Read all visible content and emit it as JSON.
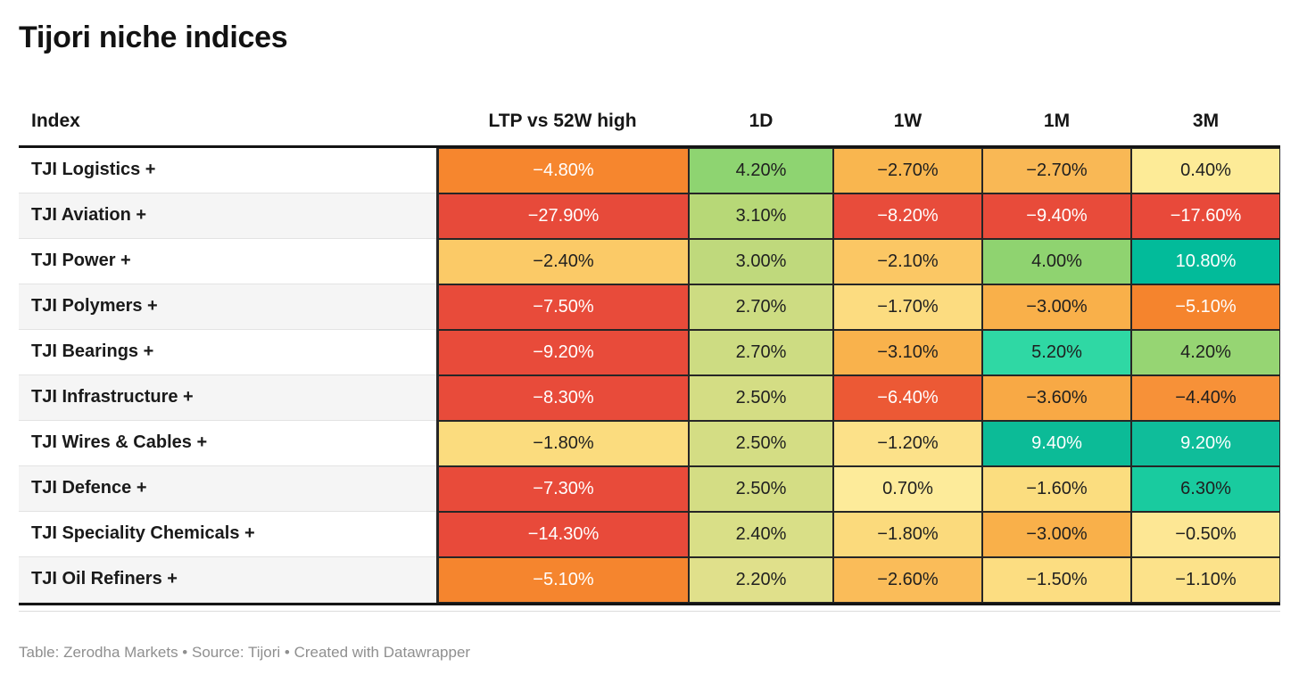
{
  "title": "Tijori niche indices",
  "table": {
    "columns": [
      "Index",
      "LTP vs 52W high",
      "1D",
      "1W",
      "1M",
      "3M"
    ],
    "rows": [
      {
        "name": "TJI Logistics +",
        "cells": [
          {
            "v": "−4.80%",
            "bg": "#f6862e",
            "fg": "#ffffff"
          },
          {
            "v": "4.20%",
            "bg": "#8ed471",
            "fg": "#1f1f1f"
          },
          {
            "v": "−2.70%",
            "bg": "#f9b64f",
            "fg": "#1f1f1f"
          },
          {
            "v": "−2.70%",
            "bg": "#f9b855",
            "fg": "#1f1f1f"
          },
          {
            "v": "0.40%",
            "bg": "#fdeb97",
            "fg": "#1f1f1f"
          }
        ]
      },
      {
        "name": "TJI Aviation +",
        "cells": [
          {
            "v": "−27.90%",
            "bg": "#e74a3a",
            "fg": "#ffffff"
          },
          {
            "v": "3.10%",
            "bg": "#b7d877",
            "fg": "#1f1f1f"
          },
          {
            "v": "−8.20%",
            "bg": "#e84c3b",
            "fg": "#ffffff"
          },
          {
            "v": "−9.40%",
            "bg": "#e84b3a",
            "fg": "#ffffff"
          },
          {
            "v": "−17.60%",
            "bg": "#e8493a",
            "fg": "#ffffff"
          }
        ]
      },
      {
        "name": "TJI Power +",
        "cells": [
          {
            "v": "−2.40%",
            "bg": "#fbca67",
            "fg": "#1f1f1f"
          },
          {
            "v": "3.00%",
            "bg": "#bfd97c",
            "fg": "#1f1f1f"
          },
          {
            "v": "−2.10%",
            "bg": "#fbc764",
            "fg": "#1f1f1f"
          },
          {
            "v": "4.00%",
            "bg": "#8fd370",
            "fg": "#1f1f1f"
          },
          {
            "v": "10.80%",
            "bg": "#02bb9a",
            "fg": "#ffffff"
          }
        ]
      },
      {
        "name": "TJI Polymers +",
        "cells": [
          {
            "v": "−7.50%",
            "bg": "#e84b3a",
            "fg": "#ffffff"
          },
          {
            "v": "2.70%",
            "bg": "#cddc82",
            "fg": "#1f1f1f"
          },
          {
            "v": "−1.70%",
            "bg": "#fcdc80",
            "fg": "#1f1f1f"
          },
          {
            "v": "−3.00%",
            "bg": "#f9b04a",
            "fg": "#1f1f1f"
          },
          {
            "v": "−5.10%",
            "bg": "#f5842d",
            "fg": "#ffffff"
          }
        ]
      },
      {
        "name": "TJI Bearings +",
        "cells": [
          {
            "v": "−9.20%",
            "bg": "#e84b3a",
            "fg": "#ffffff"
          },
          {
            "v": "2.70%",
            "bg": "#cddc82",
            "fg": "#1f1f1f"
          },
          {
            "v": "−3.10%",
            "bg": "#f9b24c",
            "fg": "#1f1f1f"
          },
          {
            "v": "5.20%",
            "bg": "#2fd8a4",
            "fg": "#1f1f1f"
          },
          {
            "v": "4.20%",
            "bg": "#96d573",
            "fg": "#1f1f1f"
          }
        ]
      },
      {
        "name": "TJI Infrastructure +",
        "cells": [
          {
            "v": "−8.30%",
            "bg": "#e84b3a",
            "fg": "#ffffff"
          },
          {
            "v": "2.50%",
            "bg": "#d4dd84",
            "fg": "#1f1f1f"
          },
          {
            "v": "−6.40%",
            "bg": "#ec5935",
            "fg": "#ffffff"
          },
          {
            "v": "−3.60%",
            "bg": "#f8a945",
            "fg": "#1f1f1f"
          },
          {
            "v": "−4.40%",
            "bg": "#f79138",
            "fg": "#1f1f1f"
          }
        ]
      },
      {
        "name": "TJI Wires & Cables +",
        "cells": [
          {
            "v": "−1.80%",
            "bg": "#fbdc7e",
            "fg": "#1f1f1f"
          },
          {
            "v": "2.50%",
            "bg": "#d4dd84",
            "fg": "#1f1f1f"
          },
          {
            "v": "−1.20%",
            "bg": "#fce189",
            "fg": "#1f1f1f"
          },
          {
            "v": "9.40%",
            "bg": "#0cbb97",
            "fg": "#ffffff"
          },
          {
            "v": "9.20%",
            "bg": "#0fbd9a",
            "fg": "#ffffff"
          }
        ]
      },
      {
        "name": "TJI Defence +",
        "cells": [
          {
            "v": "−7.30%",
            "bg": "#e84b3a",
            "fg": "#ffffff"
          },
          {
            "v": "2.50%",
            "bg": "#d4dd84",
            "fg": "#1f1f1f"
          },
          {
            "v": "0.70%",
            "bg": "#fdeb9a",
            "fg": "#1f1f1f"
          },
          {
            "v": "−1.60%",
            "bg": "#fbdd7f",
            "fg": "#1f1f1f"
          },
          {
            "v": "6.30%",
            "bg": "#19cb9f",
            "fg": "#1f1f1f"
          }
        ]
      },
      {
        "name": "TJI Speciality Chemicals +",
        "cells": [
          {
            "v": "−14.30%",
            "bg": "#e84a3a",
            "fg": "#ffffff"
          },
          {
            "v": "2.40%",
            "bg": "#d9df87",
            "fg": "#1f1f1f"
          },
          {
            "v": "−1.80%",
            "bg": "#fbda7c",
            "fg": "#1f1f1f"
          },
          {
            "v": "−3.00%",
            "bg": "#f9b04a",
            "fg": "#1f1f1f"
          },
          {
            "v": "−0.50%",
            "bg": "#fde794",
            "fg": "#1f1f1f"
          }
        ]
      },
      {
        "name": "TJI Oil Refiners +",
        "cells": [
          {
            "v": "−5.10%",
            "bg": "#f5852e",
            "fg": "#ffffff"
          },
          {
            "v": "2.20%",
            "bg": "#e0e08b",
            "fg": "#1f1f1f"
          },
          {
            "v": "−2.60%",
            "bg": "#fabc59",
            "fg": "#1f1f1f"
          },
          {
            "v": "−1.50%",
            "bg": "#fcdd81",
            "fg": "#1f1f1f"
          },
          {
            "v": "−1.10%",
            "bg": "#fce28a",
            "fg": "#1f1f1f"
          }
        ]
      }
    ]
  },
  "footer": "Table: Zerodha Markets • Source: Tijori • Created with Datawrapper",
  "chart_data": {
    "type": "heatmap",
    "title": "Tijori niche indices",
    "columns": [
      "LTP vs 52W high",
      "1D",
      "1W",
      "1M",
      "3M"
    ],
    "rows": [
      "TJI Logistics +",
      "TJI Aviation +",
      "TJI Power +",
      "TJI Polymers +",
      "TJI Bearings +",
      "TJI Infrastructure +",
      "TJI Wires & Cables +",
      "TJI Defence +",
      "TJI Speciality Chemicals +",
      "TJI Oil Refiners +"
    ],
    "values_pct": [
      [
        -4.8,
        4.2,
        -2.7,
        -2.7,
        0.4
      ],
      [
        -27.9,
        3.1,
        -8.2,
        -9.4,
        -17.6
      ],
      [
        -2.4,
        3.0,
        -2.1,
        4.0,
        10.8
      ],
      [
        -7.5,
        2.7,
        -1.7,
        -3.0,
        -5.1
      ],
      [
        -9.2,
        2.7,
        -3.1,
        5.2,
        4.2
      ],
      [
        -8.3,
        2.5,
        -6.4,
        -3.6,
        -4.4
      ],
      [
        -1.8,
        2.5,
        -1.2,
        9.4,
        9.2
      ],
      [
        -7.3,
        2.5,
        0.7,
        -1.6,
        6.3
      ],
      [
        -14.3,
        2.4,
        -1.8,
        -3.0,
        -0.5
      ],
      [
        -5.1,
        2.2,
        -2.6,
        -1.5,
        -1.1
      ]
    ],
    "color_scale": {
      "negative_strong": "#e84b3a",
      "negative_mid": "#f5852e",
      "negative_weak": "#fbdc7e",
      "neutral": "#fdeb9a",
      "positive_weak": "#d4dd84",
      "positive_mid": "#8fd471",
      "positive_strong": "#0cbb97"
    },
    "legend_position": "none",
    "grid": "cell-borders"
  }
}
